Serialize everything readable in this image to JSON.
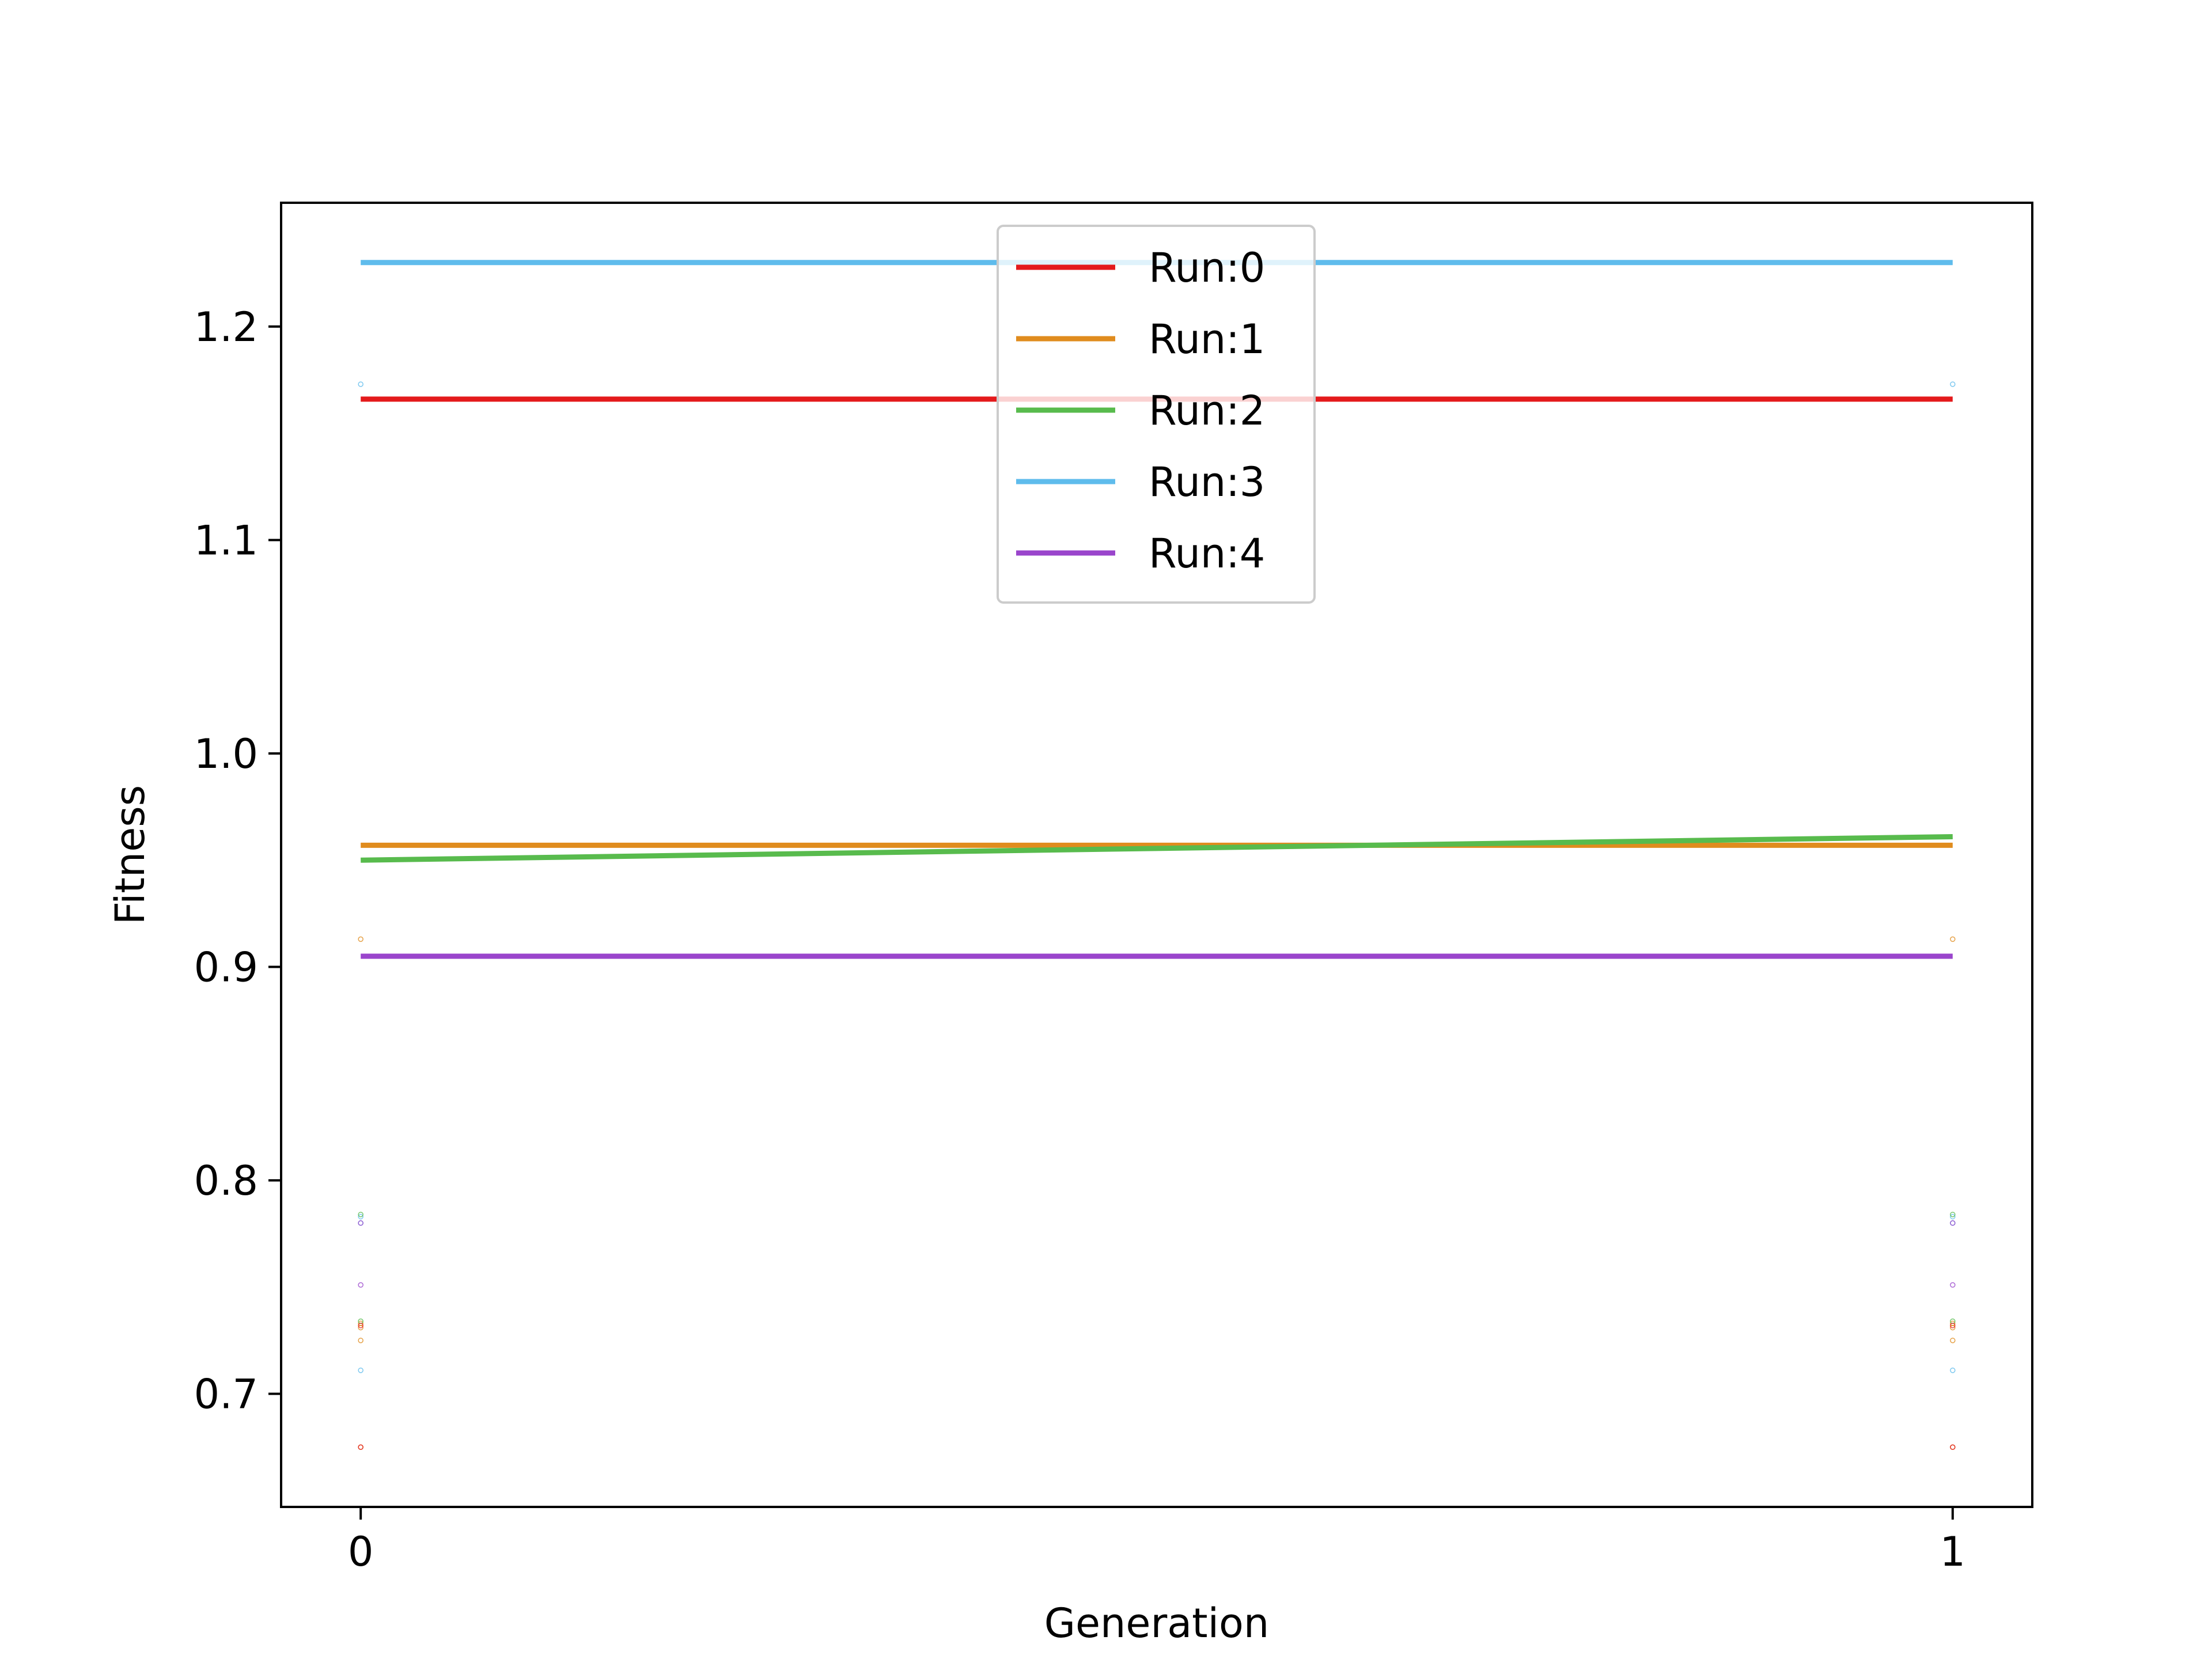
{
  "chart_data": {
    "type": "line",
    "xlabel": "Generation",
    "ylabel": "Fitness",
    "x": [
      0,
      1
    ],
    "xticks": [
      "0",
      "1"
    ],
    "yticks": [
      "0.7",
      "0.8",
      "0.9",
      "1.0",
      "1.1",
      "1.2"
    ],
    "xlim": [
      -0.05,
      1.05
    ],
    "ylim": [
      0.647,
      1.258
    ],
    "grid": false,
    "legend_position": "upper center",
    "series": [
      {
        "name": "Run:0",
        "color": "#e41a1c",
        "values": [
          1.166,
          1.166
        ]
      },
      {
        "name": "Run:1",
        "color": "#e08c1e",
        "values": [
          0.957,
          0.957
        ]
      },
      {
        "name": "Run:2",
        "color": "#58bb4d",
        "values": [
          0.95,
          0.961
        ]
      },
      {
        "name": "Run:3",
        "color": "#5fbcec",
        "values": [
          1.23,
          1.23
        ]
      },
      {
        "name": "Run:4",
        "color": "#9a45cc",
        "values": [
          0.905,
          0.905
        ]
      }
    ],
    "scatter_points": [
      {
        "color": "#5fbcec",
        "values": [
          1.173,
          0.783,
          0.78,
          0.711
        ]
      },
      {
        "color": "#e08c1e",
        "values": [
          0.913,
          0.733,
          0.731,
          0.725,
          0.675
        ]
      },
      {
        "color": "#58bb4d",
        "values": [
          0.784,
          0.734
        ]
      },
      {
        "color": "#9a45cc",
        "values": [
          0.78,
          0.751
        ]
      },
      {
        "color": "#e41a1c",
        "values": [
          0.732,
          0.675
        ]
      }
    ]
  }
}
